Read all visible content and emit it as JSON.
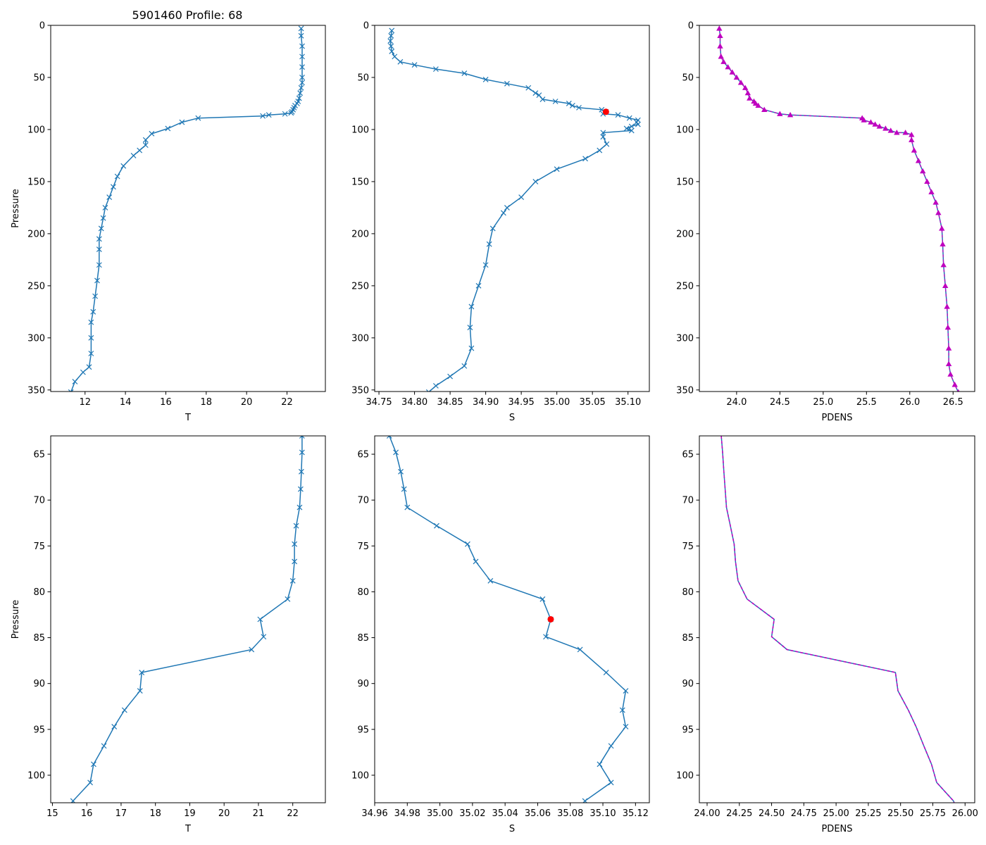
{
  "figure": {
    "title": "5901460 Profile: 68"
  },
  "colors": {
    "line": "#1f77b4",
    "pdens_marker": "#bf00bf",
    "flag": "#ff0000",
    "axis": "#000000"
  },
  "chart_data": [
    {
      "id": "top-t",
      "type": "line",
      "xlabel": "T",
      "ylabel": "Pressure",
      "xlim": [
        10.3,
        23.9
      ],
      "ylim": [
        351.5,
        0
      ],
      "xticks": [
        12,
        14,
        16,
        18,
        20,
        22
      ],
      "xtick_labels": [
        "12",
        "14",
        "16",
        "18",
        "20",
        "22"
      ],
      "yticks": [
        0,
        50,
        100,
        150,
        200,
        250,
        300,
        350
      ],
      "ytick_labels": [
        "0",
        "50",
        "100",
        "150",
        "200",
        "250",
        "300",
        "350"
      ],
      "marker": "x",
      "series": [
        {
          "name": "T",
          "x": [
            22.7,
            22.7,
            22.75,
            22.75,
            22.75,
            22.75,
            22.75,
            22.7,
            22.65,
            22.6,
            22.55,
            22.5,
            22.4,
            22.35,
            22.3,
            22.25,
            22.2,
            21.9,
            21.1,
            20.8,
            17.6,
            16.8,
            16.1,
            15.3,
            15.0,
            15.0,
            14.7,
            14.4,
            13.9,
            13.6,
            13.4,
            13.2,
            13.0,
            12.9,
            12.8,
            12.7,
            12.7,
            12.7,
            12.6,
            12.5,
            12.4,
            12.3,
            12.3,
            12.3,
            12.2,
            11.9,
            11.5,
            11.3
          ],
          "y": [
            3,
            10,
            20,
            30,
            40,
            50,
            55,
            60,
            65,
            70,
            73,
            75,
            77,
            79,
            81,
            83,
            84,
            85,
            86,
            87,
            89,
            93,
            99,
            104,
            110,
            115,
            120,
            125,
            135,
            145,
            155,
            165,
            175,
            185,
            195,
            205,
            215,
            230,
            245,
            260,
            275,
            285,
            300,
            315,
            328,
            333,
            342,
            352
          ]
        }
      ]
    },
    {
      "id": "top-s",
      "type": "line",
      "xlabel": "S",
      "ylabel": "",
      "xlim": [
        34.744,
        35.13
      ],
      "ylim": [
        351.5,
        0
      ],
      "xticks": [
        34.75,
        34.8,
        34.85,
        34.9,
        34.95,
        35.0,
        35.05,
        35.1
      ],
      "xtick_labels": [
        "34.75",
        "34.80",
        "34.85",
        "34.90",
        "34.95",
        "35.00",
        "35.05",
        "35.10"
      ],
      "yticks": [
        0,
        50,
        100,
        150,
        200,
        250,
        300,
        350
      ],
      "ytick_labels": [
        "0",
        "50",
        "100",
        "150",
        "200",
        "250",
        "300",
        "350"
      ],
      "marker": "x",
      "series": [
        {
          "name": "S",
          "x": [
            34.768,
            34.767,
            34.766,
            34.767,
            34.768,
            34.772,
            34.78,
            34.8,
            34.83,
            34.87,
            34.9,
            34.93,
            34.96,
            34.97,
            34.975,
            34.98,
            34.998,
            35.017,
            35.022,
            35.031,
            35.063,
            35.069,
            35.065,
            35.086,
            35.102,
            35.114,
            35.112,
            35.114,
            35.105,
            35.098,
            35.105,
            35.065,
            35.065,
            35.07,
            35.06,
            35.04,
            35.0,
            34.97,
            34.95,
            34.93,
            34.925,
            34.91,
            34.905,
            34.9,
            34.89,
            34.88,
            34.878,
            34.88,
            34.87,
            34.85,
            34.83,
            34.82
          ],
          "y": [
            5,
            10,
            15,
            20,
            25,
            30,
            35,
            38,
            42,
            46,
            52,
            56,
            60,
            65,
            67,
            71,
            73,
            75,
            77,
            79,
            81,
            83,
            85,
            86,
            89,
            91,
            93,
            95,
            97,
            99,
            101,
            103,
            107,
            114,
            120,
            128,
            138,
            150,
            165,
            175,
            180,
            195,
            210,
            230,
            250,
            270,
            290,
            310,
            327,
            337,
            346,
            352
          ]
        }
      ],
      "highlight": {
        "name": "flagged point",
        "x": [
          35.069
        ],
        "y": [
          83
        ]
      }
    },
    {
      "id": "top-pdens",
      "type": "line",
      "xlabel": "PDENS",
      "ylabel": "",
      "xlim": [
        23.57,
        26.75
      ],
      "ylim": [
        351.5,
        0
      ],
      "xticks": [
        24.0,
        24.5,
        25.0,
        25.5,
        26.0,
        26.5
      ],
      "xtick_labels": [
        "24.0",
        "24.5",
        "25.0",
        "25.5",
        "26.0",
        "26.5"
      ],
      "yticks": [
        0,
        50,
        100,
        150,
        200,
        250,
        300,
        350
      ],
      "ytick_labels": [
        "0",
        "50",
        "100",
        "150",
        "200",
        "250",
        "300",
        "350"
      ],
      "marker": "^",
      "series": [
        {
          "name": "PDENS",
          "x": [
            23.8,
            23.81,
            23.81,
            23.82,
            23.85,
            23.9,
            23.95,
            24.0,
            24.05,
            24.1,
            24.13,
            24.15,
            24.2,
            24.22,
            24.25,
            24.32,
            24.5,
            24.62,
            25.45,
            25.47,
            25.55,
            25.6,
            25.65,
            25.72,
            25.78,
            25.85,
            25.95,
            26.02,
            26.02,
            26.05,
            26.1,
            26.15,
            26.2,
            26.25,
            26.3,
            26.33,
            26.37,
            26.38,
            26.39,
            26.41,
            26.43,
            26.44,
            26.45,
            26.45,
            26.47,
            26.52,
            26.56
          ],
          "y": [
            3,
            10,
            20,
            30,
            35,
            40,
            45,
            50,
            55,
            60,
            65,
            70,
            73,
            75,
            77,
            81,
            85,
            86,
            89,
            91,
            93,
            95,
            97,
            99,
            101,
            103,
            103,
            105,
            110,
            120,
            130,
            140,
            150,
            160,
            170,
            180,
            195,
            210,
            230,
            250,
            270,
            290,
            310,
            325,
            335,
            345,
            352
          ]
        }
      ]
    },
    {
      "id": "bottom-t",
      "type": "line",
      "xlabel": "T",
      "ylabel": "Pressure",
      "xlim": [
        14.95,
        22.95
      ],
      "ylim": [
        103,
        63
      ],
      "xticks": [
        15,
        16,
        17,
        18,
        19,
        20,
        21,
        22
      ],
      "xtick_labels": [
        "15",
        "16",
        "17",
        "18",
        "19",
        "20",
        "21",
        "22"
      ],
      "yticks": [
        65,
        70,
        75,
        80,
        85,
        90,
        95,
        100
      ],
      "ytick_labels": [
        "65",
        "70",
        "75",
        "80",
        "85",
        "90",
        "95",
        "100"
      ],
      "marker": "x",
      "series": [
        {
          "name": "T",
          "x": [
            22.27,
            22.27,
            22.25,
            22.23,
            22.2,
            22.1,
            22.05,
            22.05,
            22.0,
            21.85,
            21.05,
            21.15,
            20.8,
            17.6,
            17.55,
            17.1,
            16.8,
            16.5,
            16.2,
            16.1,
            15.6,
            15.5
          ],
          "y": [
            63,
            64.8,
            66.9,
            68.8,
            70.8,
            72.8,
            74.8,
            76.7,
            78.8,
            80.8,
            83.0,
            84.9,
            86.3,
            88.8,
            90.8,
            92.9,
            94.7,
            96.8,
            98.8,
            100.8,
            102.8,
            103.5
          ]
        }
      ]
    },
    {
      "id": "bottom-s",
      "type": "line",
      "xlabel": "S",
      "ylabel": "",
      "xlim": [
        34.96,
        35.1285
      ],
      "ylim": [
        103,
        63
      ],
      "xticks": [
        34.96,
        34.98,
        35.0,
        35.02,
        35.04,
        35.06,
        35.08,
        35.1,
        35.12
      ],
      "xtick_labels": [
        "34.96",
        "34.98",
        "35.00",
        "35.02",
        "35.04",
        "35.06",
        "35.08",
        "35.10",
        "35.12"
      ],
      "yticks": [
        65,
        70,
        75,
        80,
        85,
        90,
        95,
        100
      ],
      "ytick_labels": [
        "65",
        "70",
        "75",
        "80",
        "85",
        "90",
        "95",
        "100"
      ],
      "marker": "x",
      "series": [
        {
          "name": "S",
          "x": [
            34.969,
            34.973,
            34.976,
            34.978,
            34.98,
            34.998,
            35.017,
            35.022,
            35.031,
            35.063,
            35.068,
            35.065,
            35.086,
            35.102,
            35.114,
            35.112,
            35.114,
            35.105,
            35.098,
            35.105,
            35.089,
            35.086
          ],
          "y": [
            63,
            64.8,
            66.9,
            68.8,
            70.8,
            72.8,
            74.8,
            76.7,
            78.8,
            80.8,
            83.0,
            84.9,
            86.3,
            88.8,
            90.8,
            92.9,
            94.7,
            96.8,
            98.8,
            100.8,
            102.8,
            103.5
          ]
        }
      ],
      "highlight": {
        "name": "flagged point",
        "x": [
          35.068
        ],
        "y": [
          83.0
        ]
      }
    },
    {
      "id": "bottom-pdens",
      "type": "line",
      "xlabel": "PDENS",
      "ylabel": "",
      "xlim": [
        23.94,
        26.075
      ],
      "ylim": [
        103,
        63
      ],
      "xticks": [
        24.0,
        24.25,
        24.5,
        24.75,
        25.0,
        25.25,
        25.5,
        25.75,
        26.0
      ],
      "xtick_labels": [
        "24.00",
        "24.25",
        "24.50",
        "24.75",
        "25.00",
        "25.25",
        "25.50",
        "25.75",
        "26.00"
      ],
      "yticks": [
        65,
        70,
        75,
        80,
        85,
        90,
        95,
        100
      ],
      "ytick_labels": [
        "65",
        "70",
        "75",
        "80",
        "85",
        "90",
        "95",
        "100"
      ],
      "marker": "none",
      "series": [
        {
          "name": "PDENS",
          "x": [
            24.11,
            24.12,
            24.13,
            24.14,
            24.15,
            24.18,
            24.21,
            24.22,
            24.24,
            24.31,
            24.52,
            24.5,
            24.62,
            25.46,
            25.48,
            25.56,
            25.62,
            25.68,
            25.74,
            25.78,
            25.91,
            25.93
          ],
          "y": [
            63,
            64.8,
            66.9,
            68.8,
            70.8,
            72.8,
            74.8,
            76.7,
            78.8,
            80.8,
            83.0,
            84.9,
            86.3,
            88.8,
            90.8,
            92.9,
            94.7,
            96.8,
            98.8,
            100.8,
            102.8,
            103.5
          ]
        }
      ]
    }
  ]
}
